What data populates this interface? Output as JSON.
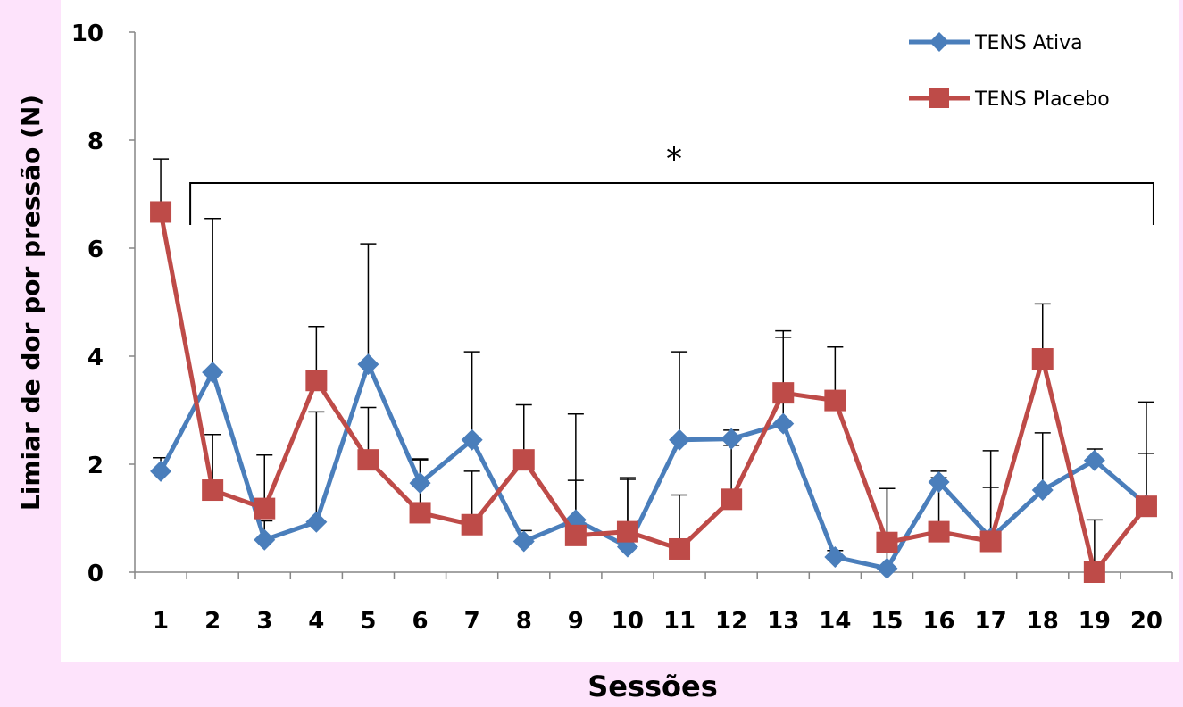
{
  "chart_data": {
    "type": "line",
    "xlabel": "Sessões",
    "ylabel": "Limiar de dor por pressão (N)",
    "ylim": [
      0,
      10
    ],
    "yticks": [
      "0",
      "2",
      "4",
      "6",
      "8",
      "10"
    ],
    "categories": [
      "1",
      "2",
      "3",
      "4",
      "5",
      "6",
      "7",
      "8",
      "9",
      "10",
      "11",
      "12",
      "13",
      "14",
      "15",
      "16",
      "17",
      "18",
      "19",
      "20"
    ],
    "grid": false,
    "legend_position": "top-right",
    "annotation": {
      "text": "*",
      "from_category": "2",
      "to_category": "20"
    },
    "series": [
      {
        "name": "TENS Ativa",
        "color": "#4a7ebb",
        "marker": "diamond",
        "values": [
          1.87,
          3.7,
          0.6,
          0.93,
          3.85,
          1.65,
          2.45,
          0.57,
          0.97,
          0.47,
          2.45,
          2.47,
          2.75,
          0.28,
          0.07,
          1.67,
          0.63,
          1.52,
          2.07,
          1.25
        ],
        "error_upper": [
          2.12,
          6.55,
          0.95,
          2.97,
          6.08,
          2.1,
          4.08,
          0.77,
          2.93,
          1.72,
          4.08,
          2.63,
          4.47,
          0.4,
          1.55,
          1.87,
          2.25,
          2.58,
          2.28,
          3.15
        ]
      },
      {
        "name": "TENS Placebo",
        "color": "#be4b48",
        "marker": "square",
        "values": [
          6.67,
          1.52,
          1.18,
          3.55,
          2.08,
          1.1,
          0.88,
          2.08,
          0.68,
          0.75,
          0.43,
          1.35,
          3.32,
          3.18,
          0.55,
          0.75,
          0.57,
          3.95,
          0.0,
          1.22
        ],
        "error_upper": [
          7.65,
          2.55,
          2.17,
          4.55,
          3.05,
          2.08,
          1.87,
          3.1,
          1.7,
          1.75,
          1.43,
          2.35,
          4.35,
          4.17,
          1.55,
          1.75,
          1.57,
          4.97,
          0.97,
          2.2
        ]
      }
    ]
  }
}
